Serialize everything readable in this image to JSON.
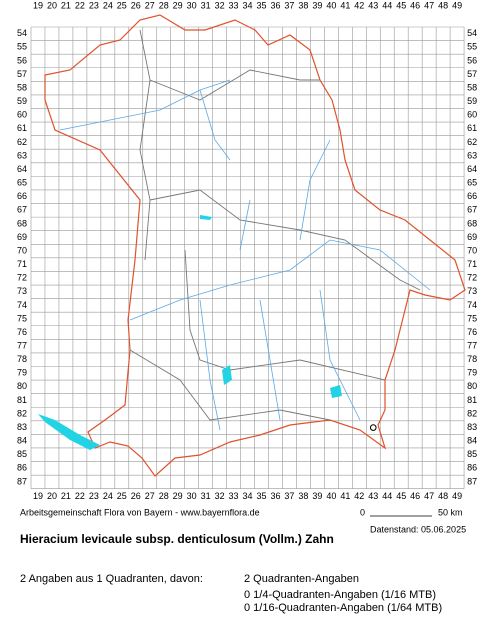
{
  "grid": {
    "columns": [
      19,
      20,
      21,
      22,
      23,
      24,
      25,
      26,
      27,
      28,
      29,
      30,
      31,
      32,
      33,
      34,
      35,
      36,
      37,
      38,
      39,
      40,
      41,
      42,
      43,
      44,
      45,
      46,
      47,
      48,
      49
    ],
    "rows": [
      54,
      55,
      56,
      57,
      58,
      59,
      60,
      61,
      62,
      63,
      64,
      65,
      66,
      67,
      68,
      69,
      70,
      71,
      72,
      73,
      74,
      75,
      76,
      77,
      78,
      79,
      80,
      81,
      82,
      83,
      84,
      85,
      86,
      87
    ]
  },
  "records": [
    {
      "column": 43,
      "row": 83
    }
  ],
  "credit": "Arbeitsgemeinschaft Flora von Bayern - www.bayernflora.de",
  "scale": {
    "start": "0",
    "end": "50 km"
  },
  "date": "Datenstand: 05.06.2025",
  "title": "Hieracium levicaule subsp. denticulosum (Vollm.) Zahn",
  "stats": {
    "summary": "2 Angaben aus 1 Quadranten, davon:",
    "lines": [
      "2 Quadranten-Angaben",
      "0 1/4-Quadranten-Angaben (1/16 MTB)",
      "0 1/16-Quadranten-Angaben (1/64 MTB)"
    ]
  }
}
